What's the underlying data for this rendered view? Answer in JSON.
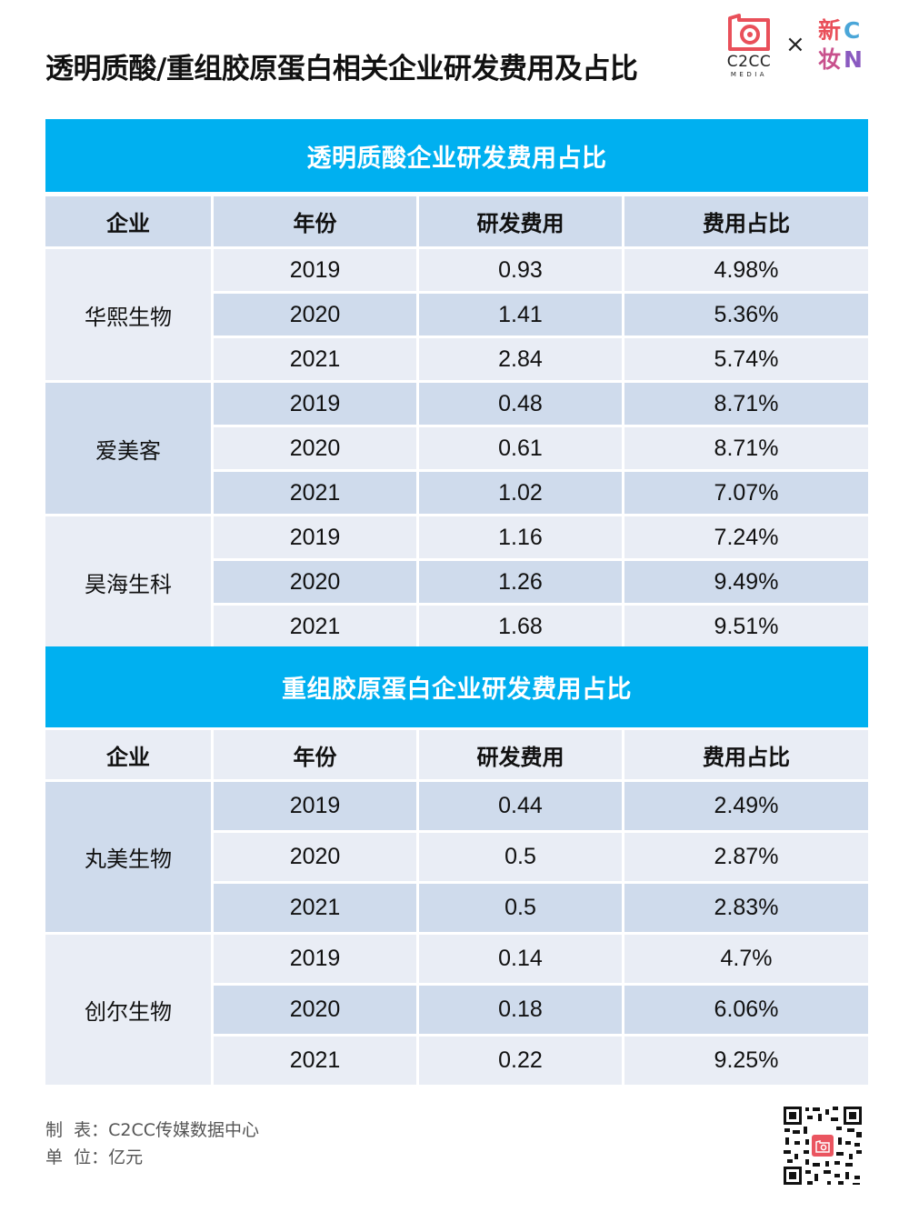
{
  "title": "透明质酸/重组胶原蛋白相关企业研发费用及占比",
  "logos": {
    "c2cc_main": "C2CC",
    "c2cc_sub": "MEDIA",
    "separator": "×",
    "partner_line1": "新",
    "partner_line2": "妆",
    "partner_glyph1": "C",
    "partner_glyph2": "N",
    "accent_red": "#e9505a"
  },
  "colors": {
    "banner": "#00b0f0",
    "row_light": "#e9edf5",
    "row_dark": "#cfdbec"
  },
  "tables": [
    {
      "title": "透明质酸企业研发费用占比",
      "headers": [
        "企业",
        "年份",
        "研发费用",
        "费用占比"
      ],
      "groups": [
        {
          "company": "华熙生物",
          "rows": [
            {
              "year": "2019",
              "cost": "0.93",
              "ratio": "4.98%"
            },
            {
              "year": "2020",
              "cost": "1.41",
              "ratio": "5.36%"
            },
            {
              "year": "2021",
              "cost": "2.84",
              "ratio": "5.74%"
            }
          ]
        },
        {
          "company": "爱美客",
          "rows": [
            {
              "year": "2019",
              "cost": "0.48",
              "ratio": "8.71%"
            },
            {
              "year": "2020",
              "cost": "0.61",
              "ratio": "8.71%"
            },
            {
              "year": "2021",
              "cost": "1.02",
              "ratio": "7.07%"
            }
          ]
        },
        {
          "company": "昊海生科",
          "rows": [
            {
              "year": "2019",
              "cost": "1.16",
              "ratio": "7.24%"
            },
            {
              "year": "2020",
              "cost": "1.26",
              "ratio": "9.49%"
            },
            {
              "year": "2021",
              "cost": "1.68",
              "ratio": "9.51%"
            }
          ]
        }
      ]
    },
    {
      "title": "重组胶原蛋白企业研发费用占比",
      "headers": [
        "企业",
        "年份",
        "研发费用",
        "费用占比"
      ],
      "groups": [
        {
          "company": "丸美生物",
          "rows": [
            {
              "year": "2019",
              "cost": "0.44",
              "ratio": "2.49%"
            },
            {
              "year": "2020",
              "cost": "0.5",
              "ratio": "2.87%"
            },
            {
              "year": "2021",
              "cost": "0.5",
              "ratio": "2.83%"
            }
          ]
        },
        {
          "company": "创尔生物",
          "rows": [
            {
              "year": "2019",
              "cost": "0.14",
              "ratio": "4.7%"
            },
            {
              "year": "2020",
              "cost": "0.18",
              "ratio": "6.06%"
            },
            {
              "year": "2021",
              "cost": "0.22",
              "ratio": "9.25%"
            }
          ]
        }
      ]
    }
  ],
  "footer": {
    "maker_label": "制  表：",
    "maker_value": "C2CC传媒数据中心",
    "unit_label": "单  位：",
    "unit_value": "亿元"
  },
  "qr_icon": "qr-code-icon"
}
